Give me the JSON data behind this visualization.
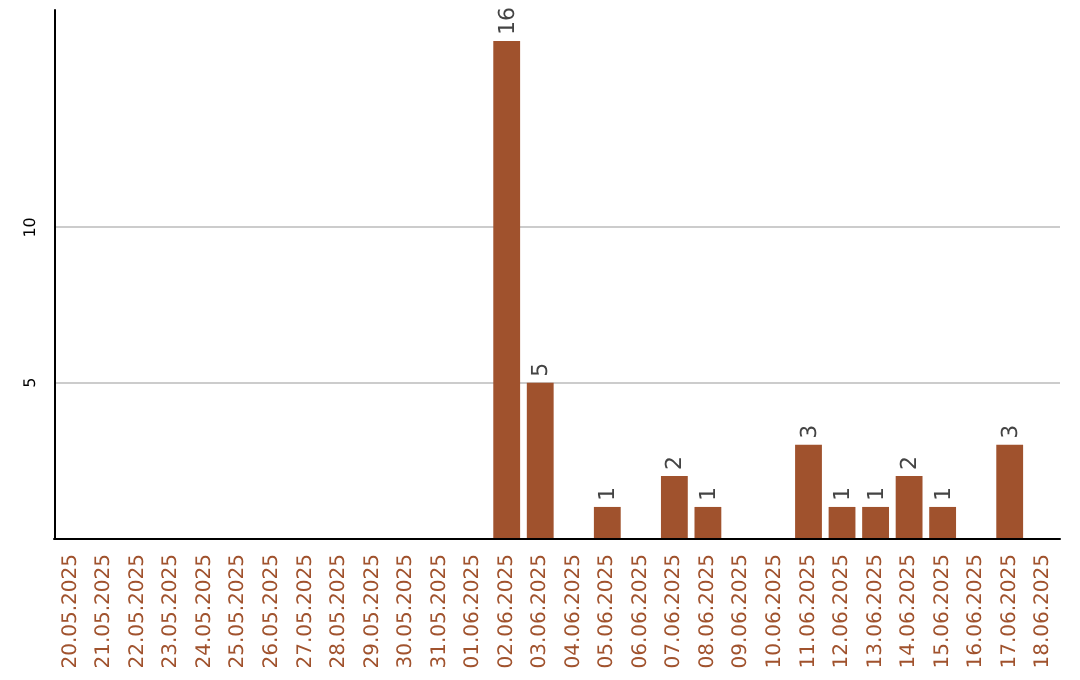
{
  "chart_data": {
    "type": "bar",
    "categories": [
      "20.05.2025",
      "21.05.2025",
      "22.05.2025",
      "23.05.2025",
      "24.05.2025",
      "25.05.2025",
      "26.05.2025",
      "27.05.2025",
      "28.05.2025",
      "29.05.2025",
      "30.05.2025",
      "31.05.2025",
      "01.06.2025",
      "02.06.2025",
      "03.06.2025",
      "04.06.2025",
      "05.06.2025",
      "06.06.2025",
      "07.06.2025",
      "08.06.2025",
      "09.06.2025",
      "10.06.2025",
      "11.06.2025",
      "12.06.2025",
      "13.06.2025",
      "14.06.2025",
      "15.06.2025",
      "16.06.2025",
      "17.06.2025",
      "18.06.2025"
    ],
    "values": [
      0,
      0,
      0,
      0,
      0,
      0,
      0,
      0,
      0,
      0,
      0,
      0,
      0,
      16,
      5,
      0,
      1,
      0,
      2,
      1,
      0,
      0,
      3,
      1,
      1,
      2,
      1,
      0,
      3,
      0
    ],
    "value_labels": [
      null,
      null,
      null,
      null,
      null,
      null,
      null,
      null,
      null,
      null,
      null,
      null,
      null,
      "16",
      "5",
      null,
      "1",
      null,
      "2",
      "1",
      null,
      null,
      "3",
      "1",
      "1",
      "2",
      "1",
      null,
      "3",
      null
    ],
    "color": "#a0522d",
    "ylim": [
      0,
      17
    ],
    "yticks": [
      5,
      10
    ],
    "grid": "y"
  }
}
